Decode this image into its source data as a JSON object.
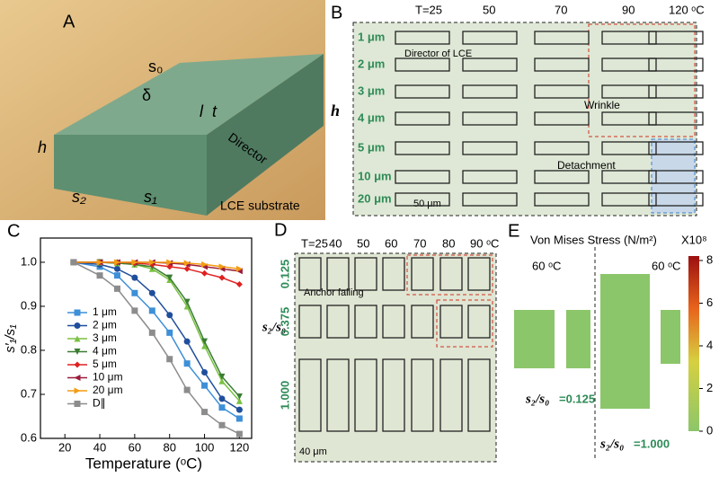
{
  "panel_a": {
    "letter": "A",
    "s0": "s₀",
    "delta": "δ",
    "l": "l",
    "t": "t",
    "h": "h",
    "s2": "s₂",
    "s1": "s₁",
    "director": "Director",
    "substrate": "LCE substrate"
  },
  "panel_b": {
    "letter": "B",
    "columns": [
      "T=25",
      "50",
      "70",
      "90",
      "120 ᵒC"
    ],
    "rows": [
      "1 μm",
      "2 μm",
      "3 μm",
      "4 μm",
      "5 μm",
      "10 μm",
      "20 μm"
    ],
    "h": "h",
    "director": "Director of LCE",
    "wrinkle": "Wrinkle",
    "detachment": "Detachment",
    "scale": "50 μm"
  },
  "panel_c": {
    "letter": "C"
  },
  "panel_d": {
    "letter": "D",
    "columns": [
      "T=25",
      "40",
      "50",
      "60",
      "70",
      "80",
      "90 ᵒC"
    ],
    "rows": [
      "0.125",
      "0.375",
      "1.000"
    ],
    "ratio": "s₂/s₀",
    "anchor": "Anchor falling",
    "scale": "40 μm"
  },
  "panel_e": {
    "letter": "E",
    "title": "Von Mises Stress (N/m²)",
    "multiplier": "X10⁸",
    "temp_left": "60 ᵒC",
    "temp_right": "60 ᵒC",
    "ratio_left": "s₂/s₀",
    "value_left": "=0.125",
    "ratio_right": "s₂/s₀",
    "value_right": "=1.000",
    "colorbar_lim": [
      0,
      8
    ],
    "colorbar_ticks": [
      0,
      2,
      4,
      6,
      8
    ]
  },
  "chart_data": {
    "type": "line",
    "x_label": "Temperature (ᵒC)",
    "y_label": "s′₁/s₁",
    "x": [
      25,
      40,
      50,
      60,
      70,
      80,
      90,
      100,
      110,
      120
    ],
    "xlim": [
      6,
      127
    ],
    "xticks": [
      20,
      40,
      60,
      80,
      100,
      120
    ],
    "ylim": [
      0.6,
      1.055
    ],
    "yticks": [
      0.6,
      0.7,
      0.8,
      0.9,
      {
        "value": 1,
        "label": "1.0"
      }
    ],
    "legend": "lower left",
    "series": [
      {
        "name": "1 μm",
        "color": "#3d8fd8",
        "marker": "square",
        "values": [
          1.0,
          0.99,
          0.97,
          0.93,
          0.89,
          0.84,
          0.77,
          0.72,
          0.67,
          0.645
        ]
      },
      {
        "name": "2 μm",
        "color": "#1f4e9c",
        "marker": "circle",
        "values": [
          1.0,
          0.995,
          0.985,
          0.965,
          0.93,
          0.88,
          0.82,
          0.75,
          0.69,
          0.665
        ]
      },
      {
        "name": "3 μm",
        "color": "#7ac143",
        "marker": "triangle-up",
        "values": [
          1.0,
          1.0,
          0.998,
          0.995,
          0.985,
          0.96,
          0.9,
          0.81,
          0.73,
          0.685
        ]
      },
      {
        "name": "4 μm",
        "color": "#3a7d32",
        "marker": "triangle-down",
        "values": [
          1.0,
          1.0,
          0.998,
          0.995,
          0.99,
          0.965,
          0.91,
          0.82,
          0.74,
          0.695
        ]
      },
      {
        "name": "5 μm",
        "color": "#e02020",
        "marker": "diamond",
        "values": [
          1.0,
          1.0,
          1.0,
          0.998,
          0.995,
          0.99,
          0.985,
          0.975,
          0.965,
          0.95
        ]
      },
      {
        "name": "10 μm",
        "color": "#9b1c3a",
        "marker": "triangle-left",
        "values": [
          1.0,
          1.0,
          1.0,
          1.0,
          1.0,
          0.998,
          0.995,
          0.99,
          0.985,
          0.98
        ]
      },
      {
        "name": "20 μm",
        "color": "#f39c12",
        "marker": "triangle-right",
        "values": [
          1.0,
          1.0,
          1.0,
          1.0,
          1.0,
          1.0,
          0.998,
          0.995,
          0.99,
          0.985
        ]
      },
      {
        "name": "D∥",
        "color": "#8c8c8c",
        "marker": "square",
        "values": [
          1.0,
          0.97,
          0.94,
          0.89,
          0.84,
          0.78,
          0.71,
          0.66,
          0.63,
          0.61
        ]
      }
    ]
  }
}
